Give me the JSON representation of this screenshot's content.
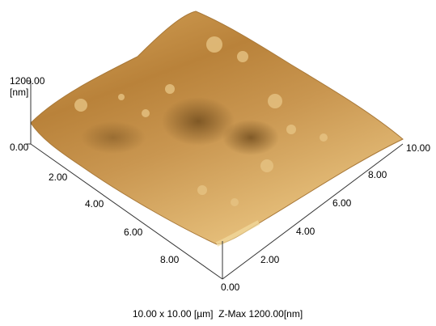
{
  "z_axis": {
    "max_label": "1200.00",
    "unit": "[nm]",
    "min_label": "0.00"
  },
  "x_axis": {
    "ticks": [
      "2.00",
      "4.00",
      "6.00",
      "8.00"
    ]
  },
  "y_axis": {
    "ticks": [
      "0.00",
      "2.00",
      "4.00",
      "6.00",
      "8.00",
      "10.00"
    ]
  },
  "caption": "10.00 x 10.00 [µm]  Z-Max 1200.00[nm]"
}
